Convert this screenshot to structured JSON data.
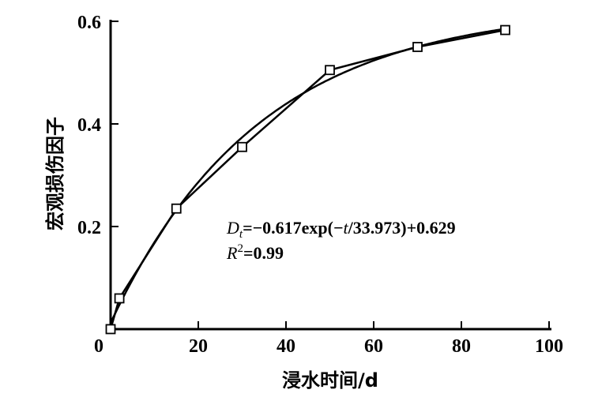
{
  "chart_data": {
    "type": "scatter",
    "xlabel": "浸水时间/d",
    "ylabel": "宏观损伤因子",
    "xlim": [
      0,
      100
    ],
    "ylim": [
      0,
      0.6
    ],
    "xticks": [
      "0",
      "20",
      "40",
      "60",
      "80",
      "100"
    ],
    "yticks": [
      "0.2",
      "0.4",
      "0.6"
    ],
    "grid": false,
    "series": [
      {
        "marker": "open-square",
        "line": "straight",
        "x": [
          0,
          2,
          15,
          30,
          50,
          70,
          90
        ],
        "y": [
          0,
          0.06,
          0.235,
          0.355,
          0.505,
          0.55,
          0.583
        ]
      }
    ],
    "fit": {
      "a": -0.617,
      "tau": 33.973,
      "c": 0.629
    },
    "annotation": {
      "equation": "Dt=−0.617exp(−t/33.973)+0.629",
      "eq_D": "D",
      "eq_sub": "t",
      "eq_rest1": "=−0.617exp(−",
      "eq_t": "t",
      "eq_rest2": "/33.973)+0.629",
      "r2_R": "R",
      "r2_sup": "2",
      "r2_rest": "=0.99"
    },
    "color": "#000000"
  }
}
